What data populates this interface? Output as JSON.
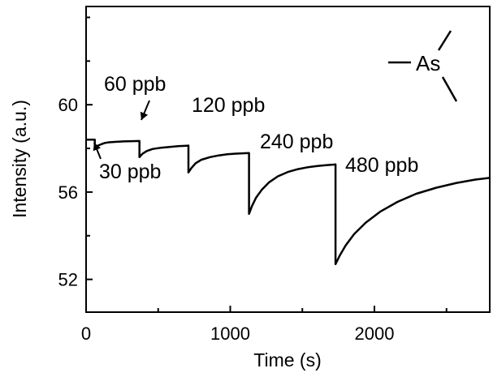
{
  "chart_data": {
    "type": "line",
    "xlabel": "Time (s)",
    "ylabel": "Intensity (a.u.)",
    "xlim": [
      0,
      2800
    ],
    "ylim": [
      50.5,
      64.5
    ],
    "xticks": [
      0,
      1000,
      2000
    ],
    "yticks": [
      52,
      56,
      60
    ],
    "grid": false,
    "legend": "As",
    "line_color": "#000000",
    "series": [
      {
        "x": [
          0,
          60,
          60,
          75,
          90,
          110,
          130,
          160,
          200,
          260,
          320,
          370,
          370,
          390,
          420,
          460,
          520,
          580,
          640,
          700,
          710,
          710,
          730,
          760,
          800,
          860,
          920,
          980,
          1040,
          1100,
          1130,
          1130,
          1150,
          1180,
          1220,
          1270,
          1330,
          1400,
          1470,
          1540,
          1610,
          1680,
          1720,
          1730,
          1730,
          1760,
          1800,
          1860,
          1940,
          2040,
          2160,
          2290,
          2430,
          2570,
          2700,
          2800
        ],
        "y": [
          58.4,
          58.4,
          58.0,
          58.1,
          58.15,
          58.2,
          58.25,
          58.28,
          58.3,
          58.32,
          58.33,
          58.34,
          57.6,
          57.75,
          57.88,
          57.97,
          58.03,
          58.07,
          58.1,
          58.12,
          58.13,
          56.9,
          57.1,
          57.32,
          57.48,
          57.6,
          57.68,
          57.73,
          57.76,
          57.78,
          57.79,
          55.0,
          55.35,
          55.75,
          56.12,
          56.45,
          56.72,
          56.92,
          57.05,
          57.14,
          57.2,
          57.24,
          57.26,
          57.27,
          52.7,
          53.1,
          53.55,
          54.08,
          54.6,
          55.1,
          55.55,
          55.92,
          56.2,
          56.42,
          56.57,
          56.65
        ]
      }
    ],
    "annotations": [
      {
        "text": "30 ppb",
        "x": 80,
        "y": 58.0
      },
      {
        "text": "60 ppb",
        "x": 370,
        "y": 57.6
      },
      {
        "text": "120 ppb",
        "x": 710,
        "y": 56.9
      },
      {
        "text": "240 ppb",
        "x": 1130,
        "y": 55.0
      },
      {
        "text": "480 ppb",
        "x": 1730,
        "y": 52.7
      }
    ]
  }
}
